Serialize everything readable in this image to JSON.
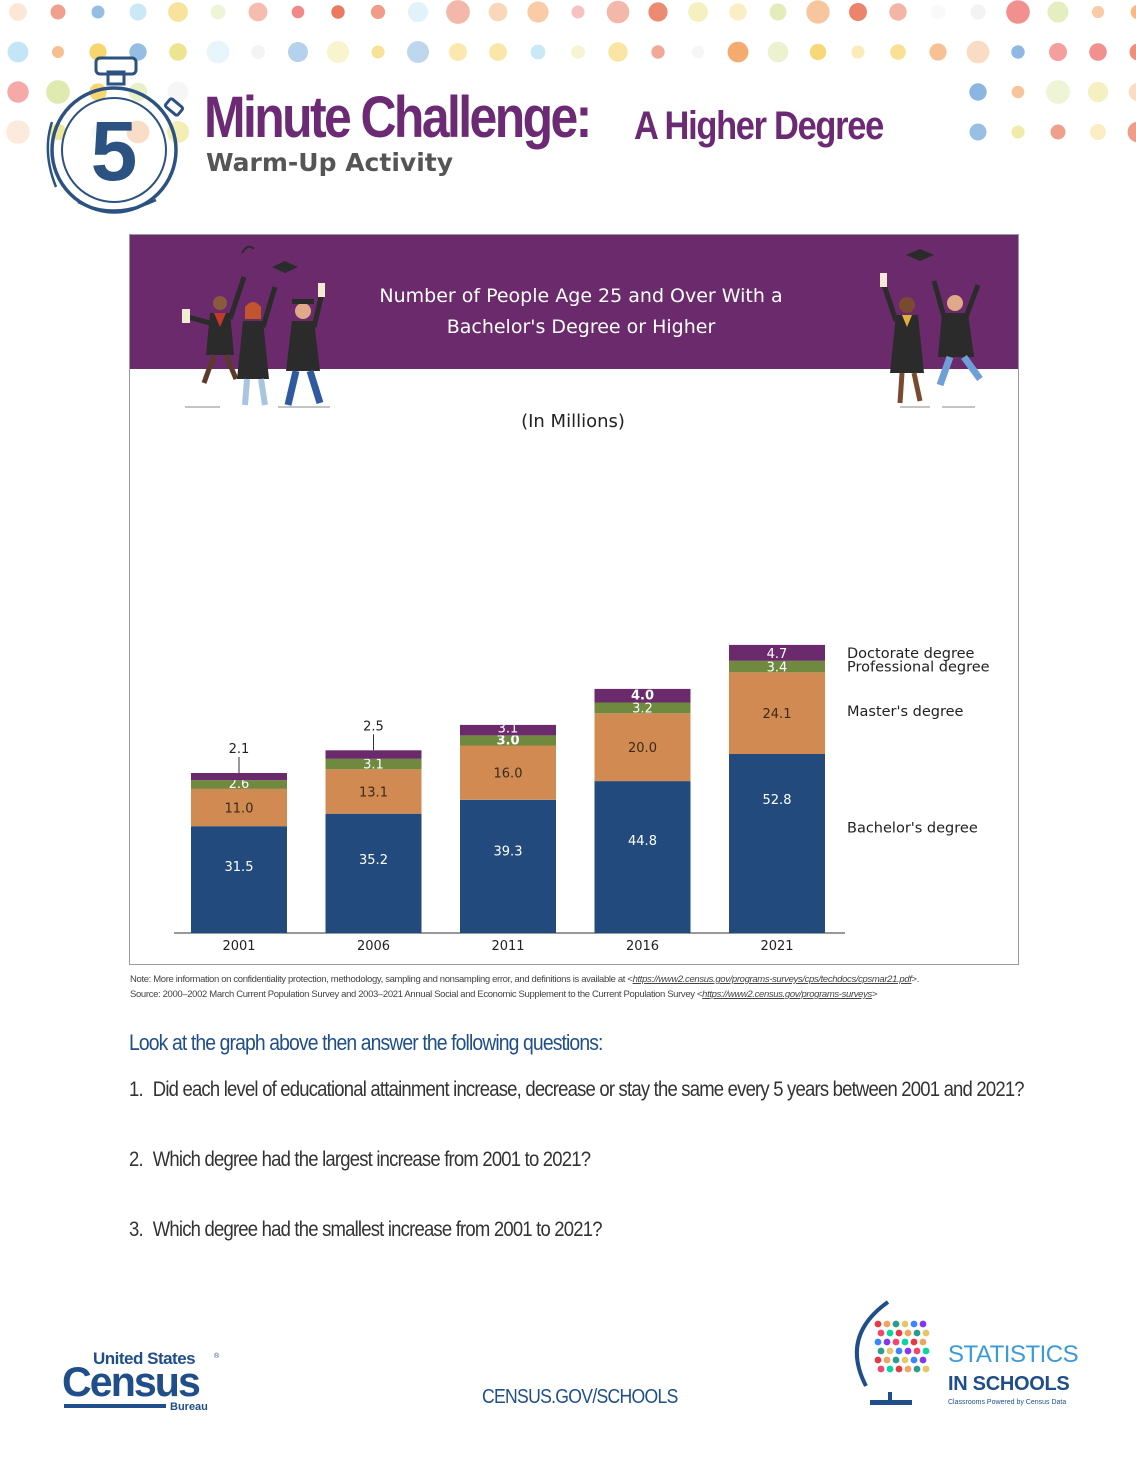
{
  "header": {
    "title": "Minute Challenge:",
    "title_suffix": "A Higher Degree",
    "subtitle": "Warm-Up Activity",
    "timer_number": "5"
  },
  "chart_data": {
    "type": "bar",
    "stacked": true,
    "title": "Number of People Age 25 and Over With a Bachelor's Degree or Higher",
    "unit_label": "(In Millions)",
    "categories": [
      "2001",
      "2006",
      "2011",
      "2016",
      "2021"
    ],
    "series": [
      {
        "name": "Bachelor's degree",
        "color": "#234a7c",
        "values": [
          31.5,
          35.2,
          39.3,
          44.8,
          52.8
        ],
        "labels": [
          "31.5",
          "35.2",
          "39.3",
          "44.8",
          "52.8"
        ]
      },
      {
        "name": "Master's degree",
        "color": "#d08a52",
        "values": [
          11.0,
          13.1,
          16.0,
          20.0,
          24.1
        ],
        "labels": [
          "11.0",
          "13.1",
          "16.0",
          "20.0",
          "24.1"
        ]
      },
      {
        "name": "Professional degree",
        "color": "#6f8a3f",
        "values": [
          2.6,
          3.1,
          3.0,
          3.2,
          3.4
        ],
        "labels": [
          "2.6",
          "3.1",
          "3.0",
          "3.2",
          "3.4"
        ]
      },
      {
        "name": "Doctorate degree",
        "color": "#6b2a6b",
        "values": [
          2.1,
          2.5,
          3.1,
          4.0,
          4.7
        ],
        "labels": [
          "2.1",
          "2.5",
          "3.1",
          "4.0",
          "4.7"
        ]
      }
    ],
    "legend_placement": "right",
    "grid": false
  },
  "note": {
    "line1_prefix": "Note: More information on confidentiality protection, methodology, sampling and nonsampling error, and definitions is available at <",
    "line1_url": "https://www2.census.gov/programs-surveys/cps/techdocs/cpsmar21.pdf",
    "line1_suffix": ">.",
    "line2_prefix": "Source: 2000–2002 March Current Population Survey and 2003–2021 Annual Social and Economic Supplement to the Current Population Survey <",
    "line2_url": "https://www2.census.gov/programs-surveys",
    "line2_suffix": ">"
  },
  "questions": {
    "heading": "Look at the graph above then answer the following questions:",
    "items": [
      {
        "number": "1.",
        "text": "Did each level of educational attainment increase, decrease or stay the same every 5 years between 2001 and 2021?"
      },
      {
        "number": "2.",
        "text": "Which degree had the largest increase from 2001 to 2021?"
      },
      {
        "number": "3.",
        "text": "Which degree had the smallest increase from 2001 to 2021?"
      }
    ]
  },
  "footer": {
    "census_line1": "United States",
    "census_line2": "Census",
    "census_line3": "Bureau",
    "url": "CENSUS.GOV/SCHOOLS",
    "sis_line1": "STATISTICS",
    "sis_line2": "IN SCHOOLS",
    "sis_tagline": "Classrooms Powered by Census Data"
  },
  "colors": {
    "brand_purple": "#6b2a73",
    "census_blue": "#1f4e8a",
    "banner": "#6b2a6b"
  }
}
